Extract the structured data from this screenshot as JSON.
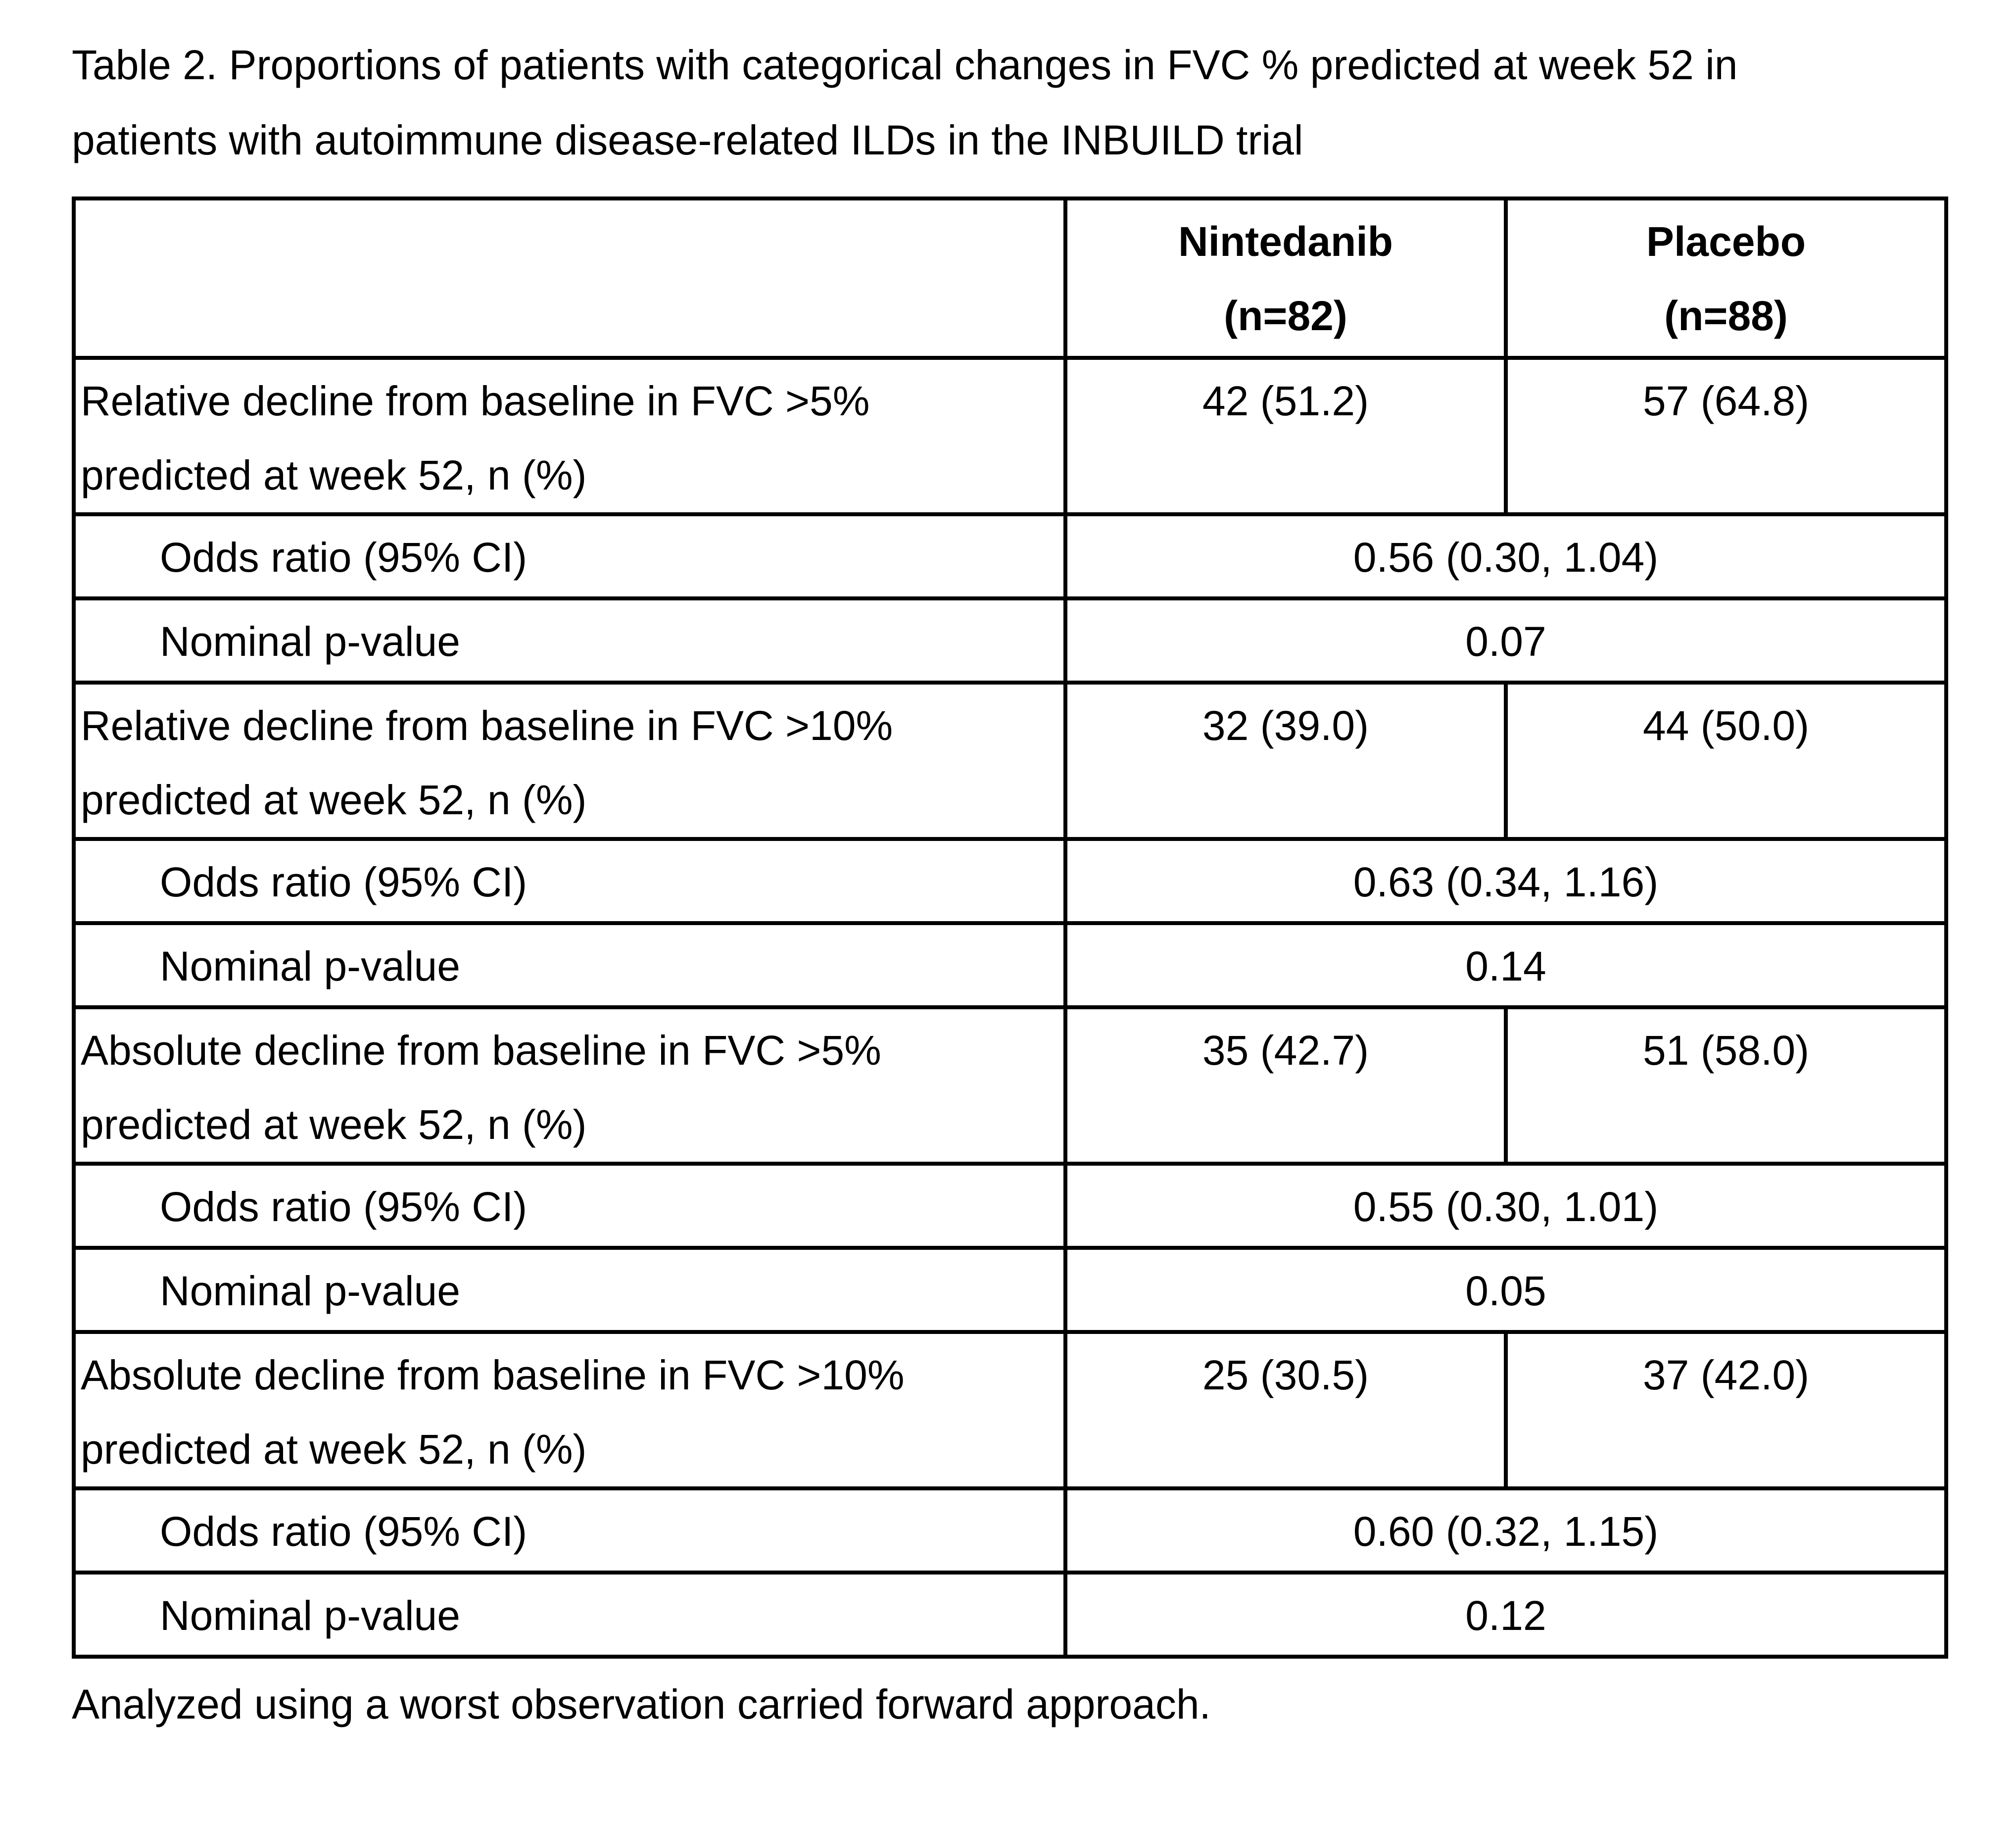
{
  "page": {
    "title_lines": [
      "Table 2. Proportions of patients with categorical changes in FVC % predicted at week 52 in",
      "patients with autoimmune disease-related ILDs in the INBUILD trial"
    ],
    "footnote": "Analyzed using a worst observation carried forward approach."
  },
  "colors": {
    "background": "#ffffff",
    "text": "#000000",
    "table_border": "#000000"
  },
  "table": {
    "columns": [
      {
        "name": "Nintedanib",
        "n": "(n=82)"
      },
      {
        "name": "Placebo",
        "n": "(n=88)"
      }
    ],
    "sections": [
      {
        "label_line1": "Relative decline from baseline in FVC >5%",
        "label_line2": "predicted at week 52, n (%)",
        "nintedanib": "42 (51.2)",
        "placebo": "57 (64.8)",
        "odds_ratio_label": "Odds ratio (95% CI)",
        "odds_ratio": "0.56 (0.30, 1.04)",
        "p_value_label": "Nominal p-value",
        "p_value": "0.07"
      },
      {
        "label_line1": "Relative decline from baseline in FVC >10%",
        "label_line2": "predicted at week 52, n (%)",
        "nintedanib": "32 (39.0)",
        "placebo": "44 (50.0)",
        "odds_ratio_label": "Odds ratio (95% CI)",
        "odds_ratio": "0.63 (0.34, 1.16)",
        "p_value_label": "Nominal p-value",
        "p_value": "0.14"
      },
      {
        "label_line1": "Absolute decline from baseline in FVC >5%",
        "label_line2": "predicted at week 52, n (%)",
        "nintedanib": "35 (42.7)",
        "placebo": "51 (58.0)",
        "odds_ratio_label": "Odds ratio (95% CI)",
        "odds_ratio": "0.55 (0.30, 1.01)",
        "p_value_label": "Nominal p-value",
        "p_value": "0.05"
      },
      {
        "label_line1": "Absolute decline from baseline in FVC >10%",
        "label_line2": "predicted at week 52, n (%)",
        "nintedanib": "25 (30.5)",
        "placebo": "37 (42.0)",
        "odds_ratio_label": "Odds ratio (95% CI)",
        "odds_ratio": "0.60 (0.32, 1.15)",
        "p_value_label": "Nominal p-value",
        "p_value": "0.12"
      }
    ]
  }
}
